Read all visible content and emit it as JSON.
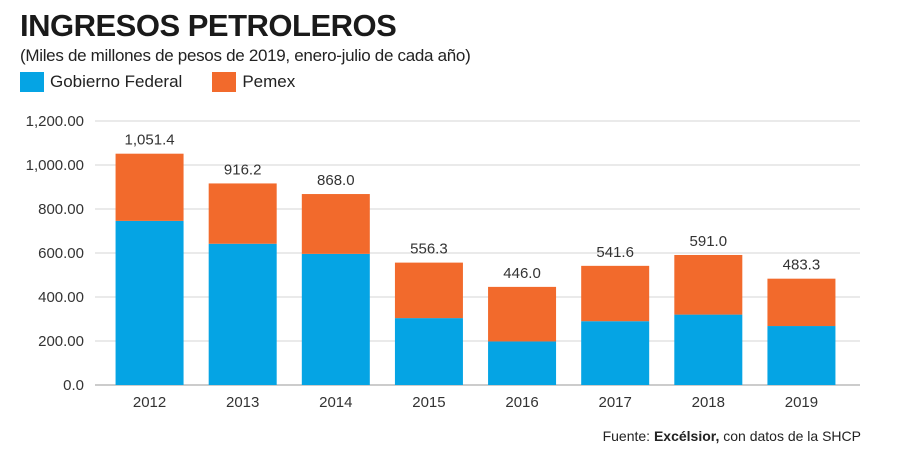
{
  "title": "INGRESOS PETROLEROS",
  "subtitle": "(Miles de millones de pesos de 2019, enero-julio de cada año)",
  "source": {
    "prefix": "Fuente: ",
    "brand": "Excélsior,",
    "suffix": " con datos de la SHCP"
  },
  "chart_data": {
    "type": "bar",
    "stacked": true,
    "title": "INGRESOS PETROLEROS",
    "subtitle": "(Miles de millones de pesos de 2019, enero-julio de cada año)",
    "xlabel": "",
    "ylabel": "",
    "categories": [
      "2012",
      "2013",
      "2014",
      "2015",
      "2016",
      "2017",
      "2018",
      "2019"
    ],
    "series": [
      {
        "name": "Gobierno Federal",
        "color": "#05a4e4",
        "values": [
          746,
          642,
          596,
          304,
          198,
          290,
          320,
          268
        ]
      },
      {
        "name": "Pemex",
        "color": "#f26a2c",
        "values": [
          305.4,
          274.2,
          272.0,
          252.3,
          248.0,
          251.6,
          271.0,
          215.3
        ]
      }
    ],
    "totals": [
      "1,051.4",
      "916.2",
      "868.0",
      "556.3",
      "446.0",
      "541.6",
      "591.0",
      "483.3"
    ],
    "total_values": [
      1051.4,
      916.2,
      868.0,
      556.3,
      446.0,
      541.6,
      591.0,
      483.3
    ],
    "ylim": [
      0,
      1200
    ],
    "yticks": [
      0,
      200,
      400,
      600,
      800,
      1000,
      1200
    ],
    "ytick_labels": [
      "0.0",
      "200.00",
      "400.00",
      "600.00",
      "800.00",
      "1,000.00",
      "1,200.00"
    ],
    "grid": true,
    "legend_position": "top-left"
  }
}
